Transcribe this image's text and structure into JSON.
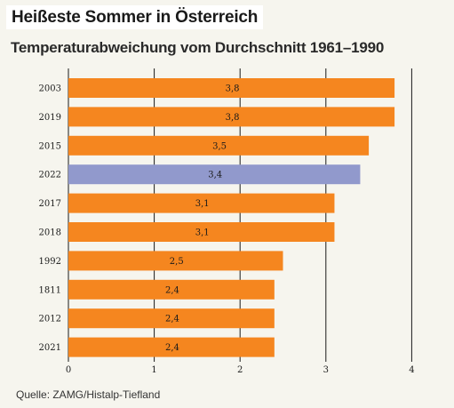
{
  "header": {
    "title": "Heißeste Sommer in Österreich",
    "subtitle": "Temperaturabweichung vom Durchschnitt 1961–1990"
  },
  "source": "Quelle: ZAMG/Histalp-Tiefland",
  "colors": {
    "default_bar": "#f5861f",
    "highlight_bar": "#9199cc",
    "background": "#f6f5ee"
  },
  "chart_data": {
    "type": "bar",
    "orientation": "horizontal",
    "title": "Heißeste Sommer in Österreich",
    "subtitle": "Temperaturabweichung vom Durchschnitt 1961–1990",
    "categories": [
      "2003",
      "2019",
      "2015",
      "2022",
      "2017",
      "2018",
      "1992",
      "1811",
      "2012",
      "2021"
    ],
    "values": [
      3.8,
      3.8,
      3.5,
      3.4,
      3.1,
      3.1,
      2.5,
      2.4,
      2.4,
      2.4
    ],
    "value_labels": [
      "3,8",
      "3,8",
      "3,5",
      "3,4",
      "3,1",
      "3,1",
      "2,5",
      "2,4",
      "2,4",
      "2,4"
    ],
    "highlight": [
      "2022"
    ],
    "xlim": [
      0,
      4
    ],
    "xticks": [
      0,
      1,
      2,
      3,
      4
    ],
    "xtick_labels": [
      "0",
      "1",
      "2",
      "3",
      "4"
    ],
    "grid": "vertical"
  }
}
